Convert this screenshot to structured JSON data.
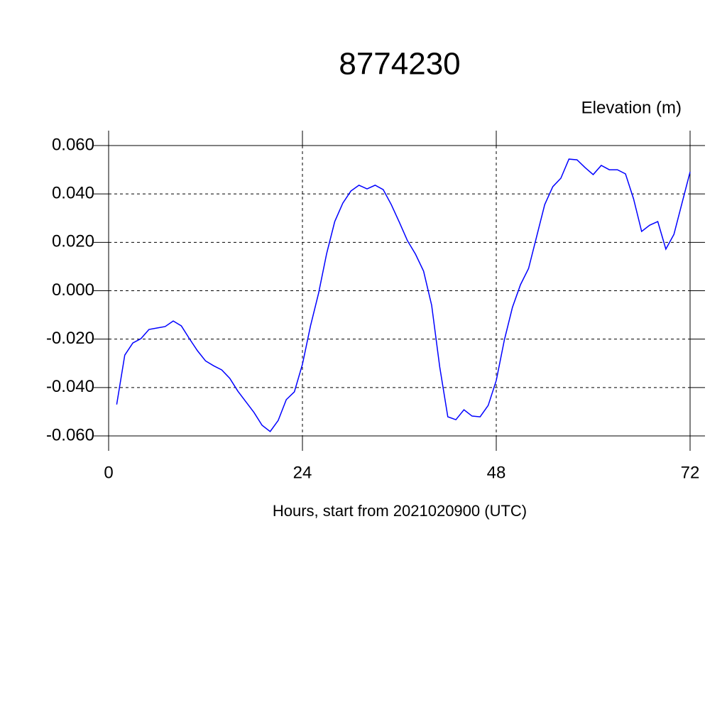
{
  "chart_data": {
    "type": "line",
    "title": "8774230",
    "y_label": "Elevation (m)",
    "x_label": "Hours, start from 2021020900 (UTC)",
    "x": [
      1,
      2,
      3,
      4,
      5,
      6,
      7,
      8,
      9,
      10,
      11,
      12,
      13,
      14,
      15,
      16,
      17,
      18,
      19,
      20,
      21,
      22,
      23,
      24,
      25,
      26,
      27,
      28,
      29,
      30,
      31,
      32,
      33,
      34,
      35,
      36,
      37,
      38,
      39,
      40,
      41,
      42,
      43,
      44,
      45,
      46,
      47,
      48,
      49,
      50,
      51,
      52,
      53,
      54,
      55,
      56,
      57,
      58,
      59,
      60,
      61,
      62,
      63,
      64,
      65,
      66,
      67,
      68,
      69,
      70,
      71,
      72
    ],
    "series": [
      {
        "color": "#0000ff",
        "values": [
          -0.047,
          -0.0266,
          -0.0216,
          -0.0198,
          -0.016,
          -0.0154,
          -0.0148,
          -0.0125,
          -0.0145,
          -0.0198,
          -0.0248,
          -0.029,
          -0.031,
          -0.0327,
          -0.0362,
          -0.0415,
          -0.0459,
          -0.0503,
          -0.0556,
          -0.0582,
          -0.0536,
          -0.045,
          -0.0418,
          -0.0304,
          -0.0145,
          -0.001,
          0.0154,
          0.0286,
          0.0362,
          0.0412,
          0.0436,
          0.0421,
          0.0436,
          0.0418,
          0.0356,
          0.0283,
          0.0207,
          0.0151,
          0.0081,
          -0.006,
          -0.0315,
          -0.0521,
          -0.0533,
          -0.0492,
          -0.0518,
          -0.0521,
          -0.0474,
          -0.0371,
          -0.0204,
          -0.0069,
          0.0025,
          0.0092,
          0.0224,
          0.0356,
          0.043,
          0.0465,
          0.0544,
          0.0541,
          0.0509,
          0.048,
          0.0518,
          0.05,
          0.05,
          0.0483,
          0.038,
          0.0245,
          0.0271,
          0.0286,
          0.0172,
          0.0233,
          0.0362,
          0.0491
        ]
      }
    ],
    "xlim": [
      0,
      72
    ],
    "xticks": [
      0,
      24,
      48,
      72
    ],
    "ylim": [
      -0.06,
      0.06
    ],
    "yticks": [
      {
        "value": -0.06,
        "label": "-0.060"
      },
      {
        "value": -0.04,
        "label": "-0.040"
      },
      {
        "value": -0.02,
        "label": "-0.020"
      },
      {
        "value": 0,
        "label": "0.000"
      },
      {
        "value": 0.02,
        "label": "0.020"
      },
      {
        "value": 0.04,
        "label": "0.040"
      },
      {
        "value": 0.06,
        "label": "0.060"
      }
    ],
    "grid": true
  }
}
